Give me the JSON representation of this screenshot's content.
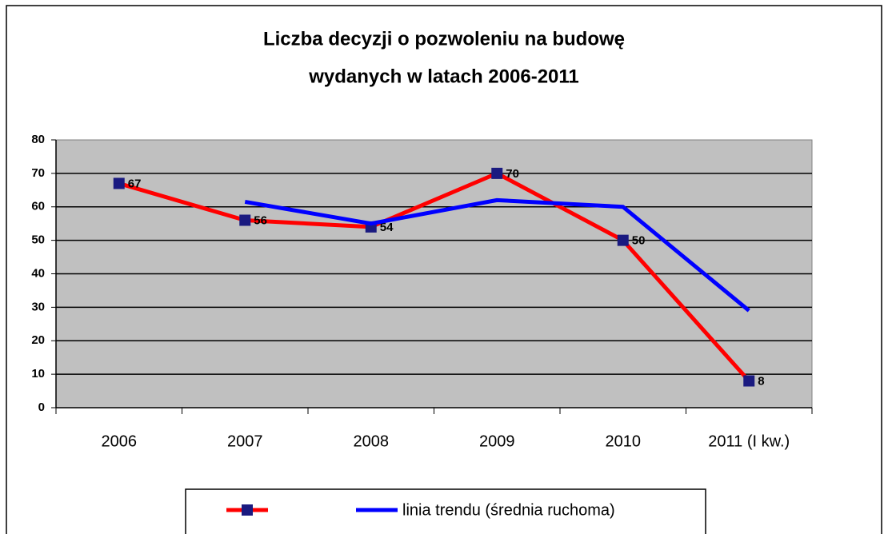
{
  "chart_data": {
    "type": "line",
    "title": [
      "Liczba decyzji o pozwoleniu na budowę",
      "wydanych w latach 2006-2011"
    ],
    "categories": [
      "2006",
      "2007",
      "2008",
      "2009",
      "2010",
      "2011 (I kw.)"
    ],
    "series": [
      {
        "color": "#ff0000",
        "marker_color": "#1a1a80",
        "values": [
          67,
          56,
          54,
          70,
          50,
          8
        ],
        "data_labels": true
      },
      {
        "name": "linia trendu (średnia ruchoma)",
        "color": "#0000ff",
        "values": [
          null,
          61.5,
          55,
          62,
          60,
          29
        ]
      }
    ],
    "ylim": [
      0,
      80
    ],
    "yticks": [
      0,
      10,
      20,
      30,
      40,
      50,
      60,
      70,
      80
    ],
    "grid": true,
    "legend": "bottom"
  }
}
